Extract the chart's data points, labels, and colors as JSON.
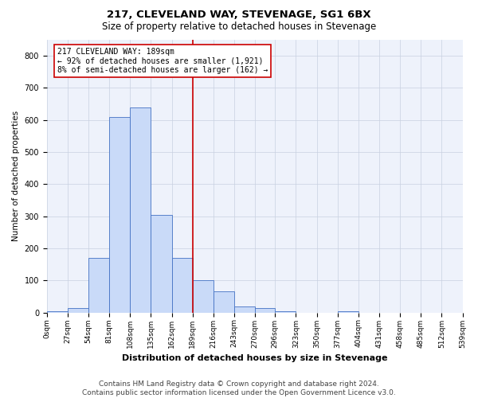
{
  "title": "217, CLEVELAND WAY, STEVENAGE, SG1 6BX",
  "subtitle": "Size of property relative to detached houses in Stevenage",
  "xlabel": "Distribution of detached houses by size in Stevenage",
  "ylabel": "Number of detached properties",
  "bin_edges": [
    0,
    27,
    54,
    81,
    108,
    135,
    162,
    189,
    216,
    243,
    270,
    296,
    323,
    350,
    377,
    404,
    431,
    458,
    485,
    512,
    539
  ],
  "bin_labels": [
    "0sqm",
    "27sqm",
    "54sqm",
    "81sqm",
    "108sqm",
    "135sqm",
    "162sqm",
    "189sqm",
    "216sqm",
    "243sqm",
    "270sqm",
    "296sqm",
    "323sqm",
    "350sqm",
    "377sqm",
    "404sqm",
    "431sqm",
    "458sqm",
    "485sqm",
    "512sqm",
    "539sqm"
  ],
  "bar_heights": [
    5,
    15,
    170,
    610,
    640,
    305,
    170,
    100,
    65,
    20,
    15,
    5,
    0,
    0,
    5,
    0,
    0,
    0,
    0,
    0
  ],
  "bar_color": "#c9daf8",
  "bar_edge_color": "#4472c4",
  "vline_x": 189,
  "vline_color": "#cc0000",
  "ylim": [
    0,
    850
  ],
  "yticks": [
    0,
    100,
    200,
    300,
    400,
    500,
    600,
    700,
    800
  ],
  "annotation_title": "217 CLEVELAND WAY: 189sqm",
  "annotation_line1": "← 92% of detached houses are smaller (1,921)",
  "annotation_line2": "8% of semi-detached houses are larger (162) →",
  "annotation_box_color": "#ffffff",
  "annotation_border_color": "#cc0000",
  "footer_line1": "Contains HM Land Registry data © Crown copyright and database right 2024.",
  "footer_line2": "Contains public sector information licensed under the Open Government Licence v3.0.",
  "bg_color": "#eef2fb",
  "title_fontsize": 9.5,
  "subtitle_fontsize": 8.5,
  "annotation_fontsize": 7,
  "ylabel_fontsize": 7.5,
  "xlabel_fontsize": 8,
  "tick_fontsize": 6.5,
  "ytick_fontsize": 7,
  "footer_fontsize": 6.5
}
